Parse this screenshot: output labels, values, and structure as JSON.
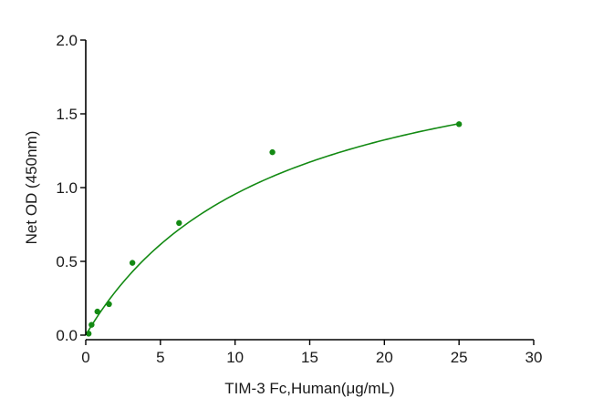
{
  "chart_data": {
    "type": "scatter",
    "xlabel": "TIM-3 Fc,Human(μg/mL)",
    "ylabel": "Net OD (450nm)",
    "xlim": [
      0,
      30
    ],
    "ylim": [
      0,
      2.0
    ],
    "x_ticks": [
      0,
      5,
      10,
      15,
      20,
      25,
      30
    ],
    "y_ticks": [
      0.0,
      0.5,
      1.0,
      1.5,
      2.0
    ],
    "x_tick_labels": [
      "0",
      "5",
      "10",
      "15",
      "20",
      "25",
      "30"
    ],
    "y_tick_labels": [
      "0.0",
      "0.5",
      "1.0",
      "1.5",
      "2.0"
    ],
    "grid": false,
    "series": [
      {
        "x": [
          0.195,
          0.39,
          0.78,
          1.56,
          3.125,
          6.25,
          12.5,
          25
        ],
        "y": [
          0.01,
          0.07,
          0.16,
          0.21,
          0.49,
          0.76,
          1.24,
          1.43
        ],
        "fit": {
          "model": "saturation",
          "bmax": 2.15,
          "kd": 12.5
        }
      }
    ],
    "colors": {
      "series": "#138a13",
      "axis": "#000000"
    }
  }
}
